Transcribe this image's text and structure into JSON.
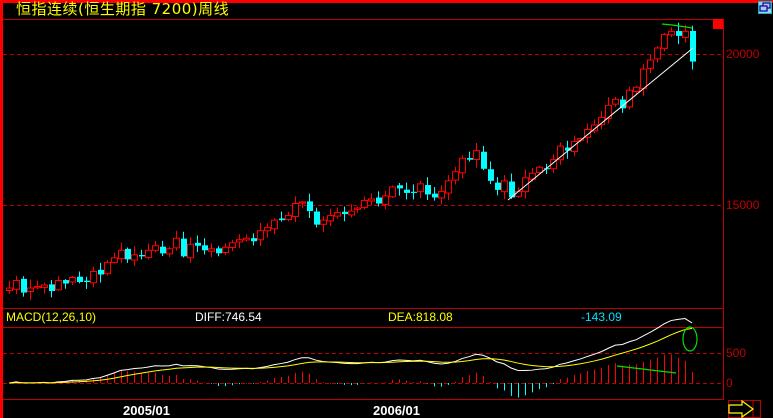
{
  "header": {
    "title": "恒指连续(恒生期指 7200)周线"
  },
  "macd_header": {
    "name": "MACD(12,26,10)",
    "diff": "DIFF:746.54",
    "dea": "DEA:818.08",
    "macd": "-143.09"
  },
  "price_axis": {
    "labels": [
      {
        "value": 20000,
        "text": "20000"
      },
      {
        "value": 15000,
        "text": "15000"
      }
    ]
  },
  "macd_axis": {
    "labels": [
      {
        "value": 500,
        "text": "500"
      },
      {
        "value": 0,
        "text": "0"
      }
    ]
  },
  "time_axis": {
    "labels": [
      {
        "text": "2005/01",
        "x": 123
      },
      {
        "text": "2006/01",
        "x": 373
      }
    ]
  },
  "colors": {
    "up": "#ff0000",
    "down": "#00ffff",
    "grid": "#c00000",
    "title": "#ffff00",
    "diff_line": "#ffffff",
    "dea_line": "#ffff00",
    "trendline": "#ffffff",
    "annotation": "#00e000"
  },
  "chart_data": [
    {
      "type": "candlestick",
      "title": "恒指连续(恒生期指 7200)周线",
      "xlabel": "",
      "ylabel": "",
      "x_ticks": [
        "2005/01",
        "2006/01"
      ],
      "y_ticks": [
        15000,
        20000
      ],
      "ylim": [
        11650,
        21100
      ],
      "grid": true,
      "annotations": [
        "white rising trendline from ~15100 (mid-2006) to ~20300 (latest week)",
        "green descending line connecting recent highs ~21000 → ~20800",
        "red square marker at top right"
      ],
      "ohlc_close_approx": [
        12250,
        12500,
        12100,
        12250,
        12300,
        12350,
        12150,
        12500,
        12400,
        12600,
        12450,
        12450,
        12800,
        12700,
        13100,
        13250,
        13500,
        13200,
        13350,
        13300,
        13500,
        13650,
        13400,
        13550,
        13900,
        13300,
        13700,
        13650,
        13500,
        13550,
        13400,
        13600,
        13750,
        13850,
        13900,
        13800,
        14150,
        14250,
        14500,
        14500,
        14650,
        15050,
        15100,
        14800,
        14350,
        14500,
        14650,
        14750,
        14700,
        14800,
        14900,
        15150,
        15200,
        15050,
        15300,
        15600,
        15550,
        15400,
        15400,
        15700,
        15350,
        15250,
        15450,
        15800,
        16100,
        16550,
        16500,
        16800,
        16200,
        15800,
        15500,
        15800,
        15250,
        15450,
        15900,
        16050,
        16250,
        16200,
        16500,
        16950,
        16800,
        17100,
        17200,
        17500,
        17650,
        17900,
        18300,
        18500,
        18200,
        18800,
        18900,
        19500,
        19800,
        20200,
        20650,
        20750,
        20600,
        20750,
        19750
      ]
    },
    {
      "type": "line",
      "title": "MACD(12,26,10)",
      "series": [
        {
          "name": "DIFF",
          "last": 746.54
        },
        {
          "name": "DEA",
          "last": 818.08
        },
        {
          "name": "MACD histogram",
          "last": -143.09
        }
      ],
      "y_ticks": [
        0,
        500
      ],
      "annotations": [
        "green ellipse around DIFF/DEA crossover at latest bar",
        "green descending line over histogram peaks (divergence)"
      ]
    }
  ]
}
